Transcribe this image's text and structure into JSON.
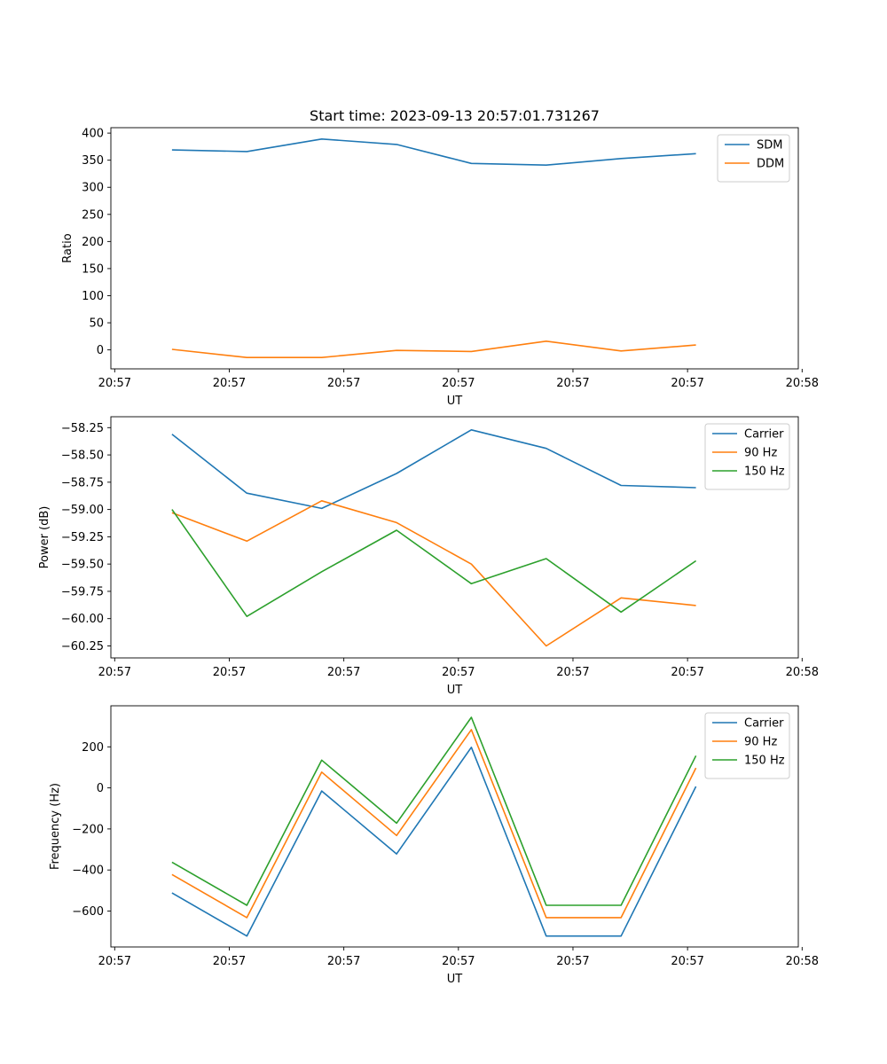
{
  "title": "Start time: 2023-09-13 20:57:01.731267",
  "colors": {
    "blue": "#1f77b4",
    "orange": "#ff7f0e",
    "green": "#2ca02c"
  },
  "chart_data": [
    {
      "type": "line",
      "xlabel": "UT",
      "ylabel": "Ratio",
      "xlim": [
        0,
        9
      ],
      "ylim": [
        -35,
        410
      ],
      "xticks": [
        0.05,
        1.55,
        3.05,
        4.55,
        6.05,
        7.55,
        9.05
      ],
      "xtick_labels": [
        "20:57",
        "20:57",
        "20:57",
        "20:57",
        "20:57",
        "20:57",
        "20:58"
      ],
      "yticks": [
        0,
        50,
        100,
        150,
        200,
        250,
        300,
        350,
        400
      ],
      "ytick_labels": [
        "0",
        "50",
        "100",
        "150",
        "200",
        "250",
        "300",
        "350",
        "400"
      ],
      "x": [
        0.8,
        1.78,
        2.76,
        3.74,
        4.72,
        5.7,
        6.68,
        7.66
      ],
      "legend_position": "top-right",
      "series": [
        {
          "name": "SDM",
          "color": "#1f77b4",
          "values": [
            369,
            366,
            389,
            379,
            344,
            341,
            353,
            362
          ]
        },
        {
          "name": "DDM",
          "color": "#ff7f0e",
          "values": [
            1,
            -14,
            -14,
            -1,
            -3,
            16,
            -2,
            9
          ]
        }
      ]
    },
    {
      "type": "line",
      "xlabel": "UT",
      "ylabel": "Power (dB)",
      "xlim": [
        0,
        9
      ],
      "ylim": [
        -60.36,
        -58.15
      ],
      "xticks": [
        0.05,
        1.55,
        3.05,
        4.55,
        6.05,
        7.55,
        9.05
      ],
      "xtick_labels": [
        "20:57",
        "20:57",
        "20:57",
        "20:57",
        "20:57",
        "20:57",
        "20:58"
      ],
      "yticks": [
        -58.25,
        -58.5,
        -58.75,
        -59.0,
        -59.25,
        -59.5,
        -59.75,
        -60.0,
        -60.25
      ],
      "ytick_labels": [
        "−58.25",
        "−58.50",
        "−58.75",
        "−59.00",
        "−59.25",
        "−59.50",
        "−59.75",
        "−60.00",
        "−60.25"
      ],
      "x": [
        0.8,
        1.78,
        2.76,
        3.74,
        4.72,
        5.7,
        6.68,
        7.66
      ],
      "legend_position": "top-right",
      "series": [
        {
          "name": "Carrier",
          "color": "#1f77b4",
          "values": [
            -58.31,
            -58.85,
            -58.99,
            -58.67,
            -58.27,
            -58.44,
            -58.78,
            -58.8
          ]
        },
        {
          "name": "90 Hz",
          "color": "#ff7f0e",
          "values": [
            -59.03,
            -59.29,
            -58.92,
            -59.12,
            -59.5,
            -60.25,
            -59.81,
            -59.88
          ]
        },
        {
          "name": "150 Hz",
          "color": "#2ca02c",
          "values": [
            -59.0,
            -59.98,
            -59.57,
            -59.19,
            -59.68,
            -59.45,
            -59.94,
            -59.47
          ]
        }
      ]
    },
    {
      "type": "line",
      "xlabel": "UT",
      "ylabel": "Frequency (Hz)",
      "xlim": [
        0,
        9
      ],
      "ylim": [
        -775,
        400
      ],
      "xticks": [
        0.05,
        1.55,
        3.05,
        4.55,
        6.05,
        7.55,
        9.05
      ],
      "xtick_labels": [
        "20:57",
        "20:57",
        "20:57",
        "20:57",
        "20:57",
        "20:57",
        "20:58"
      ],
      "yticks": [
        200,
        0,
        -200,
        -400,
        -600
      ],
      "ytick_labels": [
        "200",
        "0",
        "−200",
        "−400",
        "−600"
      ],
      "x": [
        0.8,
        1.78,
        2.76,
        3.74,
        4.72,
        5.7,
        6.68,
        7.66
      ],
      "legend_position": "top-right",
      "series": [
        {
          "name": "Carrier",
          "color": "#1f77b4",
          "values": [
            -512,
            -722,
            -15,
            -322,
            198,
            -722,
            -722,
            7
          ]
        },
        {
          "name": "90 Hz",
          "color": "#ff7f0e",
          "values": [
            -422,
            -632,
            77,
            -232,
            284,
            -632,
            -632,
            97
          ]
        },
        {
          "name": "150 Hz",
          "color": "#2ca02c",
          "values": [
            -362,
            -572,
            135,
            -172,
            344,
            -572,
            -572,
            157
          ]
        }
      ]
    }
  ]
}
